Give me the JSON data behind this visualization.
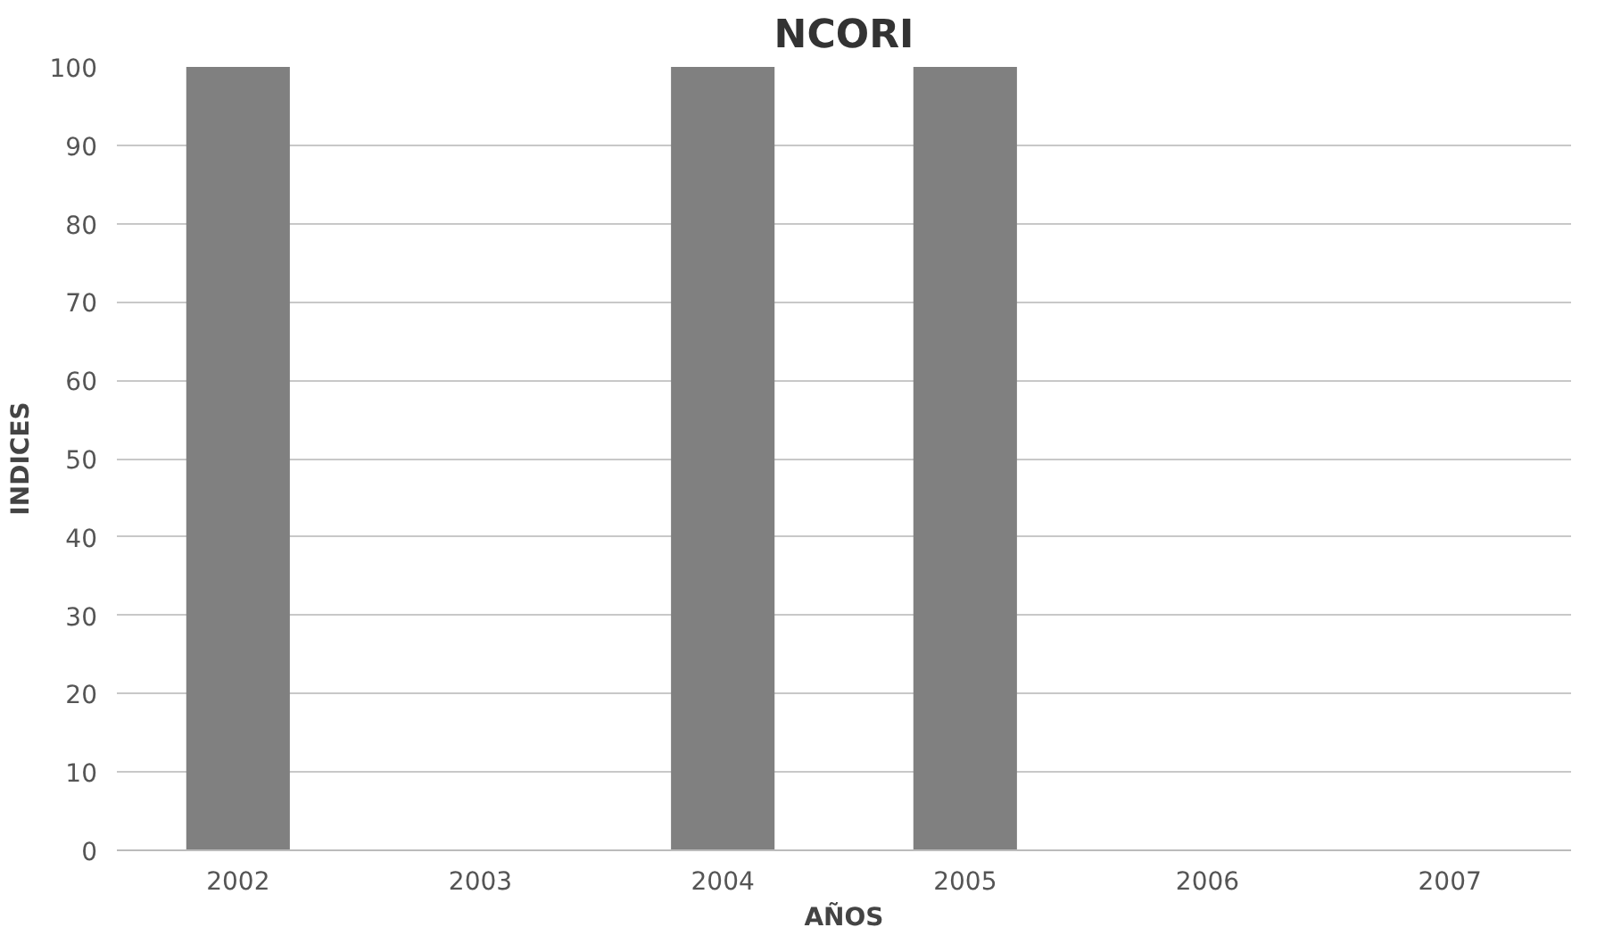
{
  "chart_data": {
    "type": "bar",
    "title": "NCORI",
    "xlabel": "AÑOS",
    "ylabel": "INDICES",
    "categories": [
      "2002",
      "2003",
      "2004",
      "2005",
      "2006",
      "2007"
    ],
    "values": [
      100,
      0,
      100,
      100,
      0,
      0
    ],
    "color": "#808080",
    "ylim": [
      0,
      100
    ],
    "yticks": [
      0,
      10,
      20,
      30,
      40,
      50,
      60,
      70,
      80,
      90,
      100
    ],
    "grid": "y"
  }
}
